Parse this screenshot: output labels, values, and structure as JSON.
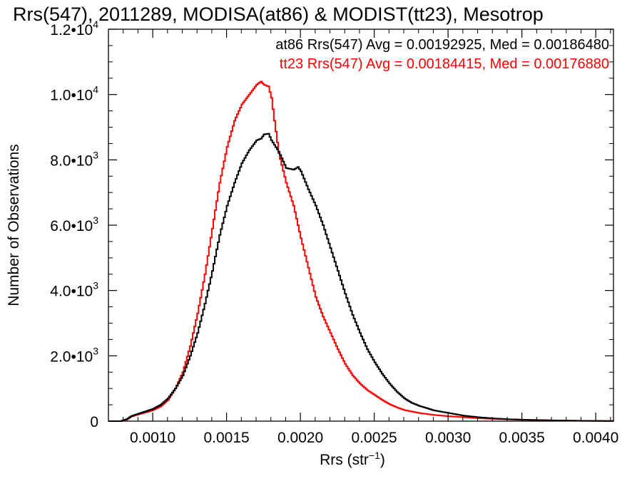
{
  "chart_data": {
    "type": "line",
    "title": "Rrs(547), 2011289, MODISA(at86) & MODIST(tt23), Mesotrop",
    "xlabel_base": "Rrs (str",
    "xlabel_exp": "−1",
    "xlabel_close": ")",
    "ylabel": "Number of Observations",
    "xlim": [
      0.0007,
      0.00412
    ],
    "ylim": [
      0,
      12000
    ],
    "x_ticks": [
      {
        "value": 0.001,
        "label": "0.0010"
      },
      {
        "value": 0.0015,
        "label": "0.0015"
      },
      {
        "value": 0.002,
        "label": "0.0020"
      },
      {
        "value": 0.0025,
        "label": "0.0025"
      },
      {
        "value": 0.003,
        "label": "0.0030"
      },
      {
        "value": 0.0035,
        "label": "0.0035"
      },
      {
        "value": 0.004,
        "label": "0.0040"
      }
    ],
    "y_ticks": [
      {
        "value": 0,
        "mant": "0",
        "exp": ""
      },
      {
        "value": 2000,
        "mant": "2.0•10",
        "exp": "3"
      },
      {
        "value": 4000,
        "mant": "4.0•10",
        "exp": "3"
      },
      {
        "value": 6000,
        "mant": "6.0•10",
        "exp": "3"
      },
      {
        "value": 8000,
        "mant": "8.0•10",
        "exp": "3"
      },
      {
        "value": 10000,
        "mant": "1.0•10",
        "exp": "4"
      },
      {
        "value": 12000,
        "mant": "1.2•10",
        "exp": "4"
      }
    ],
    "series": [
      {
        "color": "#000000",
        "stats_text": "at86 Rrs(547) Avg = 0.00192925, Med = 0.00186480",
        "points": [
          [
            0.0007,
            0
          ],
          [
            0.00078,
            0
          ],
          [
            0.00082,
            60
          ],
          [
            0.00085,
            150
          ],
          [
            0.0009,
            230
          ],
          [
            0.00095,
            300
          ],
          [
            0.001,
            380
          ],
          [
            0.00105,
            500
          ],
          [
            0.0011,
            700
          ],
          [
            0.00115,
            1000
          ],
          [
            0.0012,
            1400
          ],
          [
            0.00125,
            2000
          ],
          [
            0.0013,
            2700
          ],
          [
            0.00135,
            3600
          ],
          [
            0.0014,
            4600
          ],
          [
            0.00145,
            5700
          ],
          [
            0.0015,
            6600
          ],
          [
            0.00155,
            7300
          ],
          [
            0.0016,
            7900
          ],
          [
            0.00165,
            8300
          ],
          [
            0.0017,
            8600
          ],
          [
            0.00173,
            8650
          ],
          [
            0.00175,
            8780
          ],
          [
            0.00178,
            8800
          ],
          [
            0.0018,
            8600
          ],
          [
            0.00185,
            8250
          ],
          [
            0.0019,
            7750
          ],
          [
            0.00195,
            7700
          ],
          [
            0.00198,
            7780
          ],
          [
            0.002,
            7650
          ],
          [
            0.00205,
            7100
          ],
          [
            0.0021,
            6600
          ],
          [
            0.00215,
            6000
          ],
          [
            0.0022,
            5300
          ],
          [
            0.00225,
            4600
          ],
          [
            0.0023,
            3900
          ],
          [
            0.00235,
            3250
          ],
          [
            0.0024,
            2700
          ],
          [
            0.00245,
            2200
          ],
          [
            0.0025,
            1800
          ],
          [
            0.00255,
            1450
          ],
          [
            0.0026,
            1150
          ],
          [
            0.00265,
            900
          ],
          [
            0.0027,
            700
          ],
          [
            0.00275,
            560
          ],
          [
            0.0028,
            470
          ],
          [
            0.0029,
            330
          ],
          [
            0.003,
            250
          ],
          [
            0.0031,
            170
          ],
          [
            0.0032,
            120
          ],
          [
            0.0033,
            85
          ],
          [
            0.0034,
            60
          ],
          [
            0.0035,
            45
          ],
          [
            0.0036,
            35
          ],
          [
            0.0037,
            25
          ],
          [
            0.0038,
            18
          ],
          [
            0.0039,
            12
          ],
          [
            0.004,
            8
          ],
          [
            0.00412,
            5
          ]
        ]
      },
      {
        "color": "#ff0000",
        "stats_text": "tt23 Rrs(547) Avg = 0.00184415, Med = 0.00176880",
        "points": [
          [
            0.0007,
            0
          ],
          [
            0.00078,
            0
          ],
          [
            0.00082,
            50
          ],
          [
            0.00085,
            140
          ],
          [
            0.0009,
            210
          ],
          [
            0.00095,
            270
          ],
          [
            0.001,
            340
          ],
          [
            0.00105,
            450
          ],
          [
            0.0011,
            650
          ],
          [
            0.00115,
            1000
          ],
          [
            0.0012,
            1500
          ],
          [
            0.00125,
            2300
          ],
          [
            0.0013,
            3300
          ],
          [
            0.00135,
            4500
          ],
          [
            0.0014,
            5900
          ],
          [
            0.00145,
            7300
          ],
          [
            0.0015,
            8400
          ],
          [
            0.00155,
            9200
          ],
          [
            0.0016,
            9700
          ],
          [
            0.00165,
            10000
          ],
          [
            0.0017,
            10300
          ],
          [
            0.00173,
            10400
          ],
          [
            0.00175,
            10300
          ],
          [
            0.00178,
            10250
          ],
          [
            0.0018,
            9900
          ],
          [
            0.00182,
            9200
          ],
          [
            0.00185,
            8200
          ],
          [
            0.0019,
            7300
          ],
          [
            0.00195,
            6600
          ],
          [
            0.002,
            5600
          ],
          [
            0.00205,
            4700
          ],
          [
            0.0021,
            3800
          ],
          [
            0.00215,
            3200
          ],
          [
            0.0022,
            2700
          ],
          [
            0.00225,
            2200
          ],
          [
            0.0023,
            1750
          ],
          [
            0.00235,
            1400
          ],
          [
            0.0024,
            1150
          ],
          [
            0.00245,
            950
          ],
          [
            0.0025,
            800
          ],
          [
            0.00255,
            650
          ],
          [
            0.0026,
            520
          ],
          [
            0.00265,
            420
          ],
          [
            0.0027,
            340
          ],
          [
            0.0028,
            250
          ],
          [
            0.0029,
            190
          ],
          [
            0.003,
            150
          ],
          [
            0.0031,
            120
          ],
          [
            0.0032,
            90
          ],
          [
            0.0033,
            70
          ],
          [
            0.0034,
            55
          ],
          [
            0.0035,
            40
          ],
          [
            0.0036,
            30
          ],
          [
            0.0037,
            22
          ],
          [
            0.0038,
            16
          ],
          [
            0.0039,
            10
          ],
          [
            0.004,
            7
          ],
          [
            0.00412,
            4
          ]
        ]
      }
    ]
  }
}
